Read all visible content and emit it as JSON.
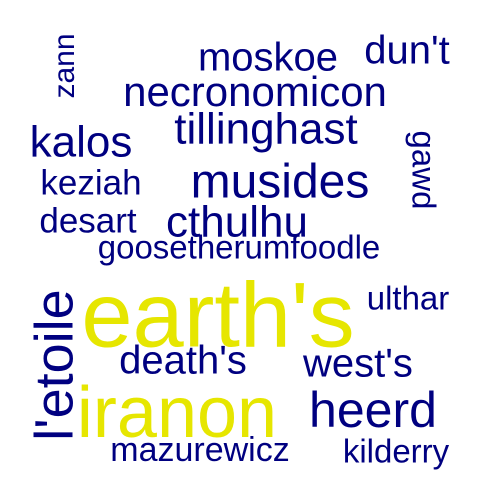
{
  "palette": {
    "primary": "#000080",
    "highlight": "#e6e600"
  },
  "words": [
    {
      "text": "earth's",
      "weight": 1.0,
      "color": "#e6e600"
    },
    {
      "text": "iranon",
      "weight": 0.85,
      "color": "#e6e600"
    },
    {
      "text": "l'etoile",
      "weight": 0.62,
      "color": "#000080"
    },
    {
      "text": "heerd",
      "weight": 0.58,
      "color": "#000080"
    },
    {
      "text": "musides",
      "weight": 0.58,
      "color": "#000080"
    },
    {
      "text": "tillinghast",
      "weight": 0.54,
      "color": "#000080"
    },
    {
      "text": "cthulhu",
      "weight": 0.5,
      "color": "#000080"
    },
    {
      "text": "kalos",
      "weight": 0.5,
      "color": "#000080"
    },
    {
      "text": "necronomicon",
      "weight": 0.48,
      "color": "#000080"
    },
    {
      "text": "moskoe",
      "weight": 0.46,
      "color": "#000080"
    },
    {
      "text": "death's",
      "weight": 0.46,
      "color": "#000080"
    },
    {
      "text": "dun't",
      "weight": 0.46,
      "color": "#000080"
    },
    {
      "text": "west's",
      "weight": 0.44,
      "color": "#000080"
    },
    {
      "text": "mazurewicz",
      "weight": 0.38,
      "color": "#000080"
    },
    {
      "text": "goosetherumfoodle",
      "weight": 0.38,
      "color": "#000080"
    },
    {
      "text": "desart",
      "weight": 0.37,
      "color": "#000080"
    },
    {
      "text": "keziah",
      "weight": 0.37,
      "color": "#000080"
    },
    {
      "text": "kilderry",
      "weight": 0.35,
      "color": "#000080"
    },
    {
      "text": "ulthar",
      "weight": 0.35,
      "color": "#000080"
    },
    {
      "text": "gawd",
      "weight": 0.33,
      "color": "#000080"
    },
    {
      "text": "zann",
      "weight": 0.3,
      "color": "#000080"
    }
  ]
}
